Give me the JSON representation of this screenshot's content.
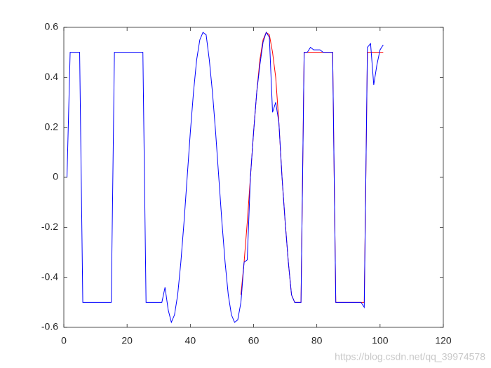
{
  "chart_data": {
    "type": "line",
    "x": [
      1,
      2,
      3,
      4,
      5,
      6,
      7,
      8,
      9,
      10,
      11,
      12,
      13,
      14,
      15,
      16,
      17,
      18,
      19,
      20,
      21,
      22,
      23,
      24,
      25,
      26,
      27,
      28,
      29,
      30,
      31,
      32,
      33,
      34,
      35,
      36,
      37,
      38,
      39,
      40,
      41,
      42,
      43,
      44,
      45,
      46,
      47,
      48,
      49,
      50,
      51,
      52,
      53,
      54,
      55,
      56,
      57,
      58,
      59,
      60,
      61,
      62,
      63,
      64,
      65,
      66,
      67,
      68,
      69,
      70,
      71,
      72,
      73,
      74,
      75,
      76,
      77,
      78,
      79,
      80,
      81,
      82,
      83,
      84,
      85,
      86,
      87,
      88,
      89,
      90,
      91,
      92,
      93,
      94,
      95,
      96,
      97,
      98,
      99,
      100,
      101
    ],
    "series": [
      {
        "color": "#ff0000",
        "values": [
          null,
          null,
          null,
          null,
          null,
          null,
          null,
          null,
          null,
          null,
          null,
          null,
          null,
          null,
          null,
          null,
          null,
          null,
          null,
          null,
          null,
          null,
          null,
          null,
          null,
          null,
          null,
          null,
          null,
          null,
          null,
          null,
          null,
          null,
          null,
          null,
          null,
          null,
          null,
          null,
          null,
          null,
          null,
          null,
          null,
          null,
          null,
          null,
          null,
          null,
          null,
          null,
          null,
          null,
          null,
          -0.47,
          -0.34,
          -0.18,
          0,
          0.18,
          0.34,
          0.47,
          0.55,
          0.58,
          0.57,
          0.5,
          0.4,
          0.22,
          0,
          -0.18,
          -0.34,
          -0.47,
          -0.5,
          -0.5,
          -0.5,
          0.5,
          0.5,
          0.5,
          0.5,
          0.5,
          0.5,
          0.5,
          0.5,
          0.5,
          0.5,
          -0.5,
          -0.5,
          -0.5,
          -0.5,
          -0.5,
          -0.5,
          -0.5,
          -0.5,
          -0.5,
          -0.5,
          0.5,
          0.5,
          0.5,
          0.5,
          0.5,
          0.5
        ]
      },
      {
        "color": "#0000ff",
        "values": [
          0,
          0.5,
          0.5,
          0.5,
          0.5,
          -0.5,
          -0.5,
          -0.5,
          -0.5,
          -0.5,
          -0.5,
          -0.5,
          -0.5,
          -0.5,
          -0.5,
          0.5,
          0.5,
          0.5,
          0.5,
          0.5,
          0.5,
          0.5,
          0.5,
          0.5,
          0.5,
          -0.5,
          -0.5,
          -0.5,
          -0.5,
          -0.5,
          -0.5,
          -0.44,
          -0.53,
          -0.58,
          -0.55,
          -0.47,
          -0.34,
          -0.18,
          0,
          0.18,
          0.34,
          0.47,
          0.55,
          0.58,
          0.57,
          0.47,
          0.34,
          0.18,
          0,
          -0.18,
          -0.34,
          -0.47,
          -0.55,
          -0.58,
          -0.57,
          -0.5,
          -0.34,
          -0.33,
          0,
          0.18,
          0.34,
          0.45,
          0.54,
          0.58,
          0.56,
          0.26,
          0.3,
          0.22,
          0,
          -0.18,
          -0.34,
          -0.47,
          -0.5,
          -0.5,
          -0.5,
          0.5,
          0.5,
          0.52,
          0.51,
          0.51,
          0.51,
          0.5,
          0.5,
          0.5,
          0.5,
          -0.5,
          -0.5,
          -0.5,
          -0.5,
          -0.5,
          -0.5,
          -0.5,
          -0.5,
          -0.5,
          -0.52,
          0.52,
          0.535,
          0.37,
          0.45,
          0.51,
          0.53
        ]
      }
    ],
    "xlim": [
      0,
      120
    ],
    "xticks": [
      0,
      20,
      40,
      60,
      80,
      100,
      120
    ],
    "ylim": [
      -0.6,
      0.6
    ],
    "yticks": [
      -0.6,
      -0.4,
      -0.2,
      0,
      0.2,
      0.4,
      0.6
    ],
    "watermark": "https://blog.csdn.net/qq_39974578"
  }
}
